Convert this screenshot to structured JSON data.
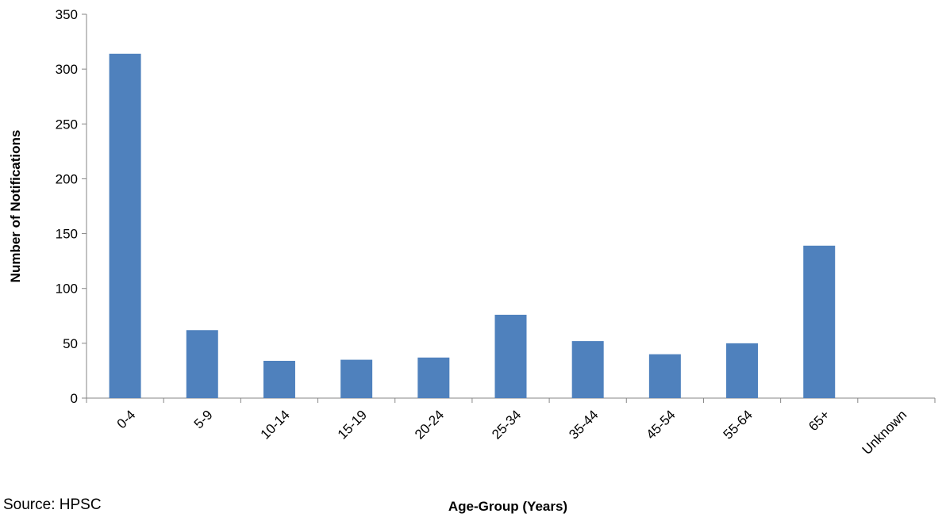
{
  "source_note": "Source: HPSC",
  "chart_data": {
    "type": "bar",
    "categories": [
      "0-4",
      "5-9",
      "10-14",
      "15-19",
      "20-24",
      "25-34",
      "35-44",
      "45-54",
      "55-64",
      "65+",
      "Unknown"
    ],
    "values": [
      314,
      62,
      34,
      35,
      37,
      76,
      52,
      40,
      50,
      139,
      0
    ],
    "xlabel": "Age-Group (Years)",
    "ylabel": "Number of Notifications",
    "ylim": [
      0,
      350
    ],
    "yticks": [
      0,
      50,
      100,
      150,
      200,
      250,
      300,
      350
    ],
    "grid": false,
    "legend": "none",
    "bar_color": "#4F81BD"
  }
}
